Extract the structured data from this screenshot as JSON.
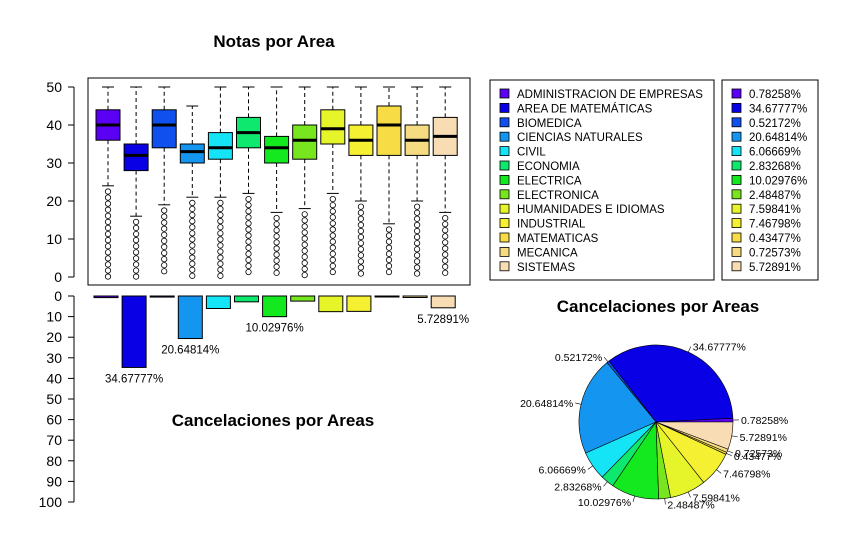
{
  "chart_data": [
    {
      "type": "box",
      "title": "Notas por Area",
      "ylim": [
        0,
        50
      ],
      "yticks": [
        "0",
        "10",
        "20",
        "30",
        "40",
        "50"
      ],
      "series": [
        {
          "name": "ADMINISTRACION DE EMPRESAS",
          "color": "#5a00f5",
          "q1": 36,
          "median": 40,
          "q3": 44,
          "whisker_low": 24,
          "whisker_high": 50
        },
        {
          "name": "AREA DE MATEMÁTICAS",
          "color": "#0a00e6",
          "q1": 28,
          "median": 32,
          "q3": 35,
          "whisker_low": 16,
          "whisker_high": 50
        },
        {
          "name": "BIOMEDICA",
          "color": "#0f50ee",
          "q1": 34,
          "median": 40,
          "q3": 44,
          "whisker_low": 19,
          "whisker_high": 50
        },
        {
          "name": "CIENCIAS NATURALES",
          "color": "#1495f0",
          "q1": 30,
          "median": 33,
          "q3": 35,
          "whisker_low": 21,
          "whisker_high": 45
        },
        {
          "name": "CIVIL",
          "color": "#14e4f5",
          "q1": 31,
          "median": 34,
          "q3": 38,
          "whisker_low": 21,
          "whisker_high": 50
        },
        {
          "name": "ECONOMIA",
          "color": "#0fe86e",
          "q1": 34,
          "median": 38,
          "q3": 42,
          "whisker_low": 22,
          "whisker_high": 50
        },
        {
          "name": "ELECTRICA",
          "color": "#14e81e",
          "q1": 30,
          "median": 34,
          "q3": 37,
          "whisker_low": 17,
          "whisker_high": 50
        },
        {
          "name": "ELECTRONICA",
          "color": "#78e61e",
          "q1": 31,
          "median": 36,
          "q3": 40,
          "whisker_low": 18,
          "whisker_high": 50
        },
        {
          "name": "HUMANIDADES E IDIOMAS",
          "color": "#e6f52a",
          "q1": 35,
          "median": 39,
          "q3": 44,
          "whisker_low": 22,
          "whisker_high": 50
        },
        {
          "name": "INDUSTRIAL",
          "color": "#f5f032",
          "q1": 32,
          "median": 36,
          "q3": 40,
          "whisker_low": 20,
          "whisker_high": 50
        },
        {
          "name": "MATEMATICAS",
          "color": "#f7dc46",
          "q1": 32,
          "median": 40,
          "q3": 45,
          "whisker_low": 14,
          "whisker_high": 50
        },
        {
          "name": "MECANICA",
          "color": "#f5dc82",
          "q1": 32,
          "median": 36,
          "q3": 40,
          "whisker_low": 20,
          "whisker_high": 50
        },
        {
          "name": "SISTEMAS",
          "color": "#f7dcb4",
          "q1": 32,
          "median": 37,
          "q3": 42,
          "whisker_low": 17,
          "whisker_high": 50
        }
      ]
    },
    {
      "type": "bar",
      "title": "Cancelaciones por Areas",
      "orientation": "downward",
      "ylim": [
        0,
        100
      ],
      "yticks": [
        "0",
        "10",
        "20",
        "30",
        "40",
        "50",
        "60",
        "70",
        "80",
        "90",
        "100"
      ],
      "categories": [
        "ADMINISTRACION DE EMPRESAS",
        "AREA DE MATEMÁTICAS",
        "BIOMEDICA",
        "CIENCIAS NATURALES",
        "CIVIL",
        "ECONOMIA",
        "ELECTRICA",
        "ELECTRONICA",
        "HUMANIDADES E IDIOMAS",
        "INDUSTRIAL",
        "MATEMATICAS",
        "MECANICA",
        "SISTEMAS"
      ],
      "values": [
        0.78258,
        34.67777,
        0.52172,
        20.64814,
        6.06669,
        2.83268,
        10.02976,
        2.48487,
        7.59841,
        7.46798,
        0.43477,
        0.72573,
        5.72891
      ],
      "value_labels": [
        "",
        "34.67777%",
        "",
        "20.64814%",
        "",
        "",
        "10.02976%",
        "",
        "",
        "",
        "",
        "",
        "5.72891%"
      ]
    },
    {
      "type": "pie",
      "title": "Cancelaciones por Areas",
      "labels": [
        "0.78258%",
        "34.67777%",
        "0.52172%",
        "20.64814%",
        "6.06669%",
        "2.83268%",
        "10.02976%",
        "2.48487%",
        "7.59841%",
        "7.46798%",
        "0.43477%",
        "0.72573%",
        "5.72891%"
      ],
      "values": [
        0.78258,
        34.67777,
        0.52172,
        20.64814,
        6.06669,
        2.83268,
        10.02976,
        2.48487,
        7.59841,
        7.46798,
        0.43477,
        0.72573,
        5.72891
      ]
    }
  ],
  "legend_left": {
    "items": [
      "ADMINISTRACION DE EMPRESAS",
      "AREA DE MATEMÁTICAS",
      "BIOMEDICA",
      "CIENCIAS NATURALES",
      "CIVIL",
      "ECONOMIA",
      "ELECTRICA",
      "ELECTRONICA",
      "HUMANIDADES E IDIOMAS",
      "INDUSTRIAL",
      "MATEMATICAS",
      "MECANICA",
      "SISTEMAS"
    ]
  },
  "legend_right": {
    "items": [
      "0.78258%",
      "34.67777%",
      "0.52172%",
      "20.64814%",
      "6.06669%",
      "2.83268%",
      "10.02976%",
      "2.48487%",
      "7.59841%",
      "7.46798%",
      "0.43477%",
      "0.72573%",
      "5.72891%"
    ]
  },
  "colors": [
    "#5a00f5",
    "#0a00e6",
    "#0f50ee",
    "#1495f0",
    "#14e4f5",
    "#0fe86e",
    "#14e81e",
    "#78e61e",
    "#e6f52a",
    "#f5f032",
    "#f7dc46",
    "#f5dc82",
    "#f7dcb4"
  ]
}
